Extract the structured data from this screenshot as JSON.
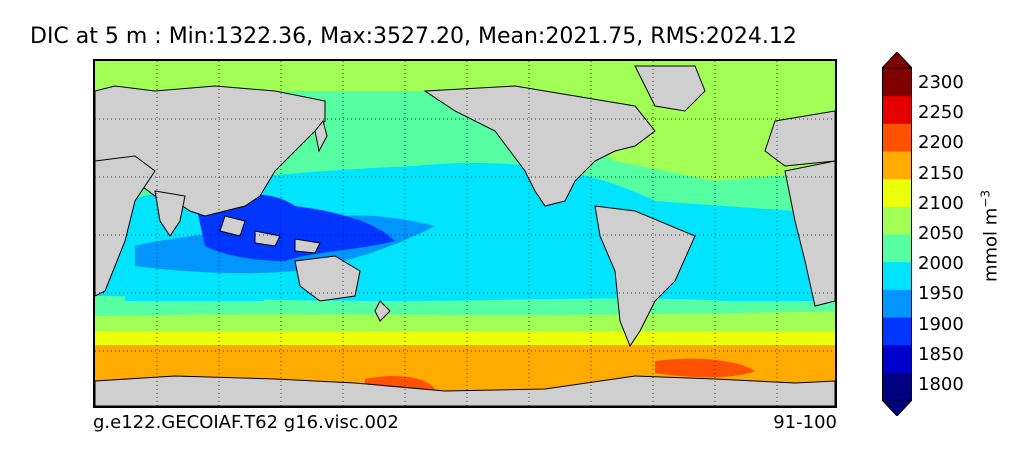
{
  "title": "DIC at 5 m : Min:1322.36, Max:3527.20, Mean:2021.75, RMS:2024.12",
  "footer": {
    "case": "g.e122.GECOIAF.T62 g16.visc.002",
    "years": "91-100"
  },
  "colorbar": {
    "units_base": "mmol m",
    "units_exp": "−3",
    "tick_labels": [
      "2300",
      "2250",
      "2200",
      "2150",
      "2100",
      "2050",
      "2000",
      "1950",
      "1900",
      "1850",
      "1800"
    ],
    "levels": [
      1775,
      1800,
      1825,
      1850,
      1875,
      1900,
      1925,
      1950,
      1975,
      2000,
      2025,
      2050,
      2075,
      2100,
      2125,
      2150,
      2175,
      2200,
      2225,
      2250,
      2275,
      2300,
      2325
    ],
    "colors_low_to_high": [
      "#000080",
      "#0000cd",
      "#0036ff",
      "#0095ff",
      "#00e4ff",
      "#56ffa1",
      "#a1ff56",
      "#ecff0b",
      "#ffab00",
      "#ff5200",
      "#e50000",
      "#800000"
    ],
    "under_color": "#000080",
    "over_color": "#800000"
  },
  "map": {
    "projection": "cylindrical",
    "land_color": "#cfcfcf",
    "grid": "dotted",
    "bands": [
      {
        "region": "arctic",
        "color": "#a1ff56"
      },
      {
        "region": "north-pacific",
        "color": "#56ffa1"
      },
      {
        "region": "tropical-pacific",
        "color": "#00e4ff"
      },
      {
        "region": "warm-pool",
        "color": "#0036ff"
      },
      {
        "region": "south-subtropics",
        "color": "#56ffa1"
      },
      {
        "region": "southern-ocean-north",
        "color": "#a1ff56"
      },
      {
        "region": "southern-ocean",
        "color": "#ecff0b"
      },
      {
        "region": "antarctic-circumpolar",
        "color": "#ffab00"
      },
      {
        "region": "antarctic-margin",
        "color": "#ff5200"
      }
    ]
  }
}
